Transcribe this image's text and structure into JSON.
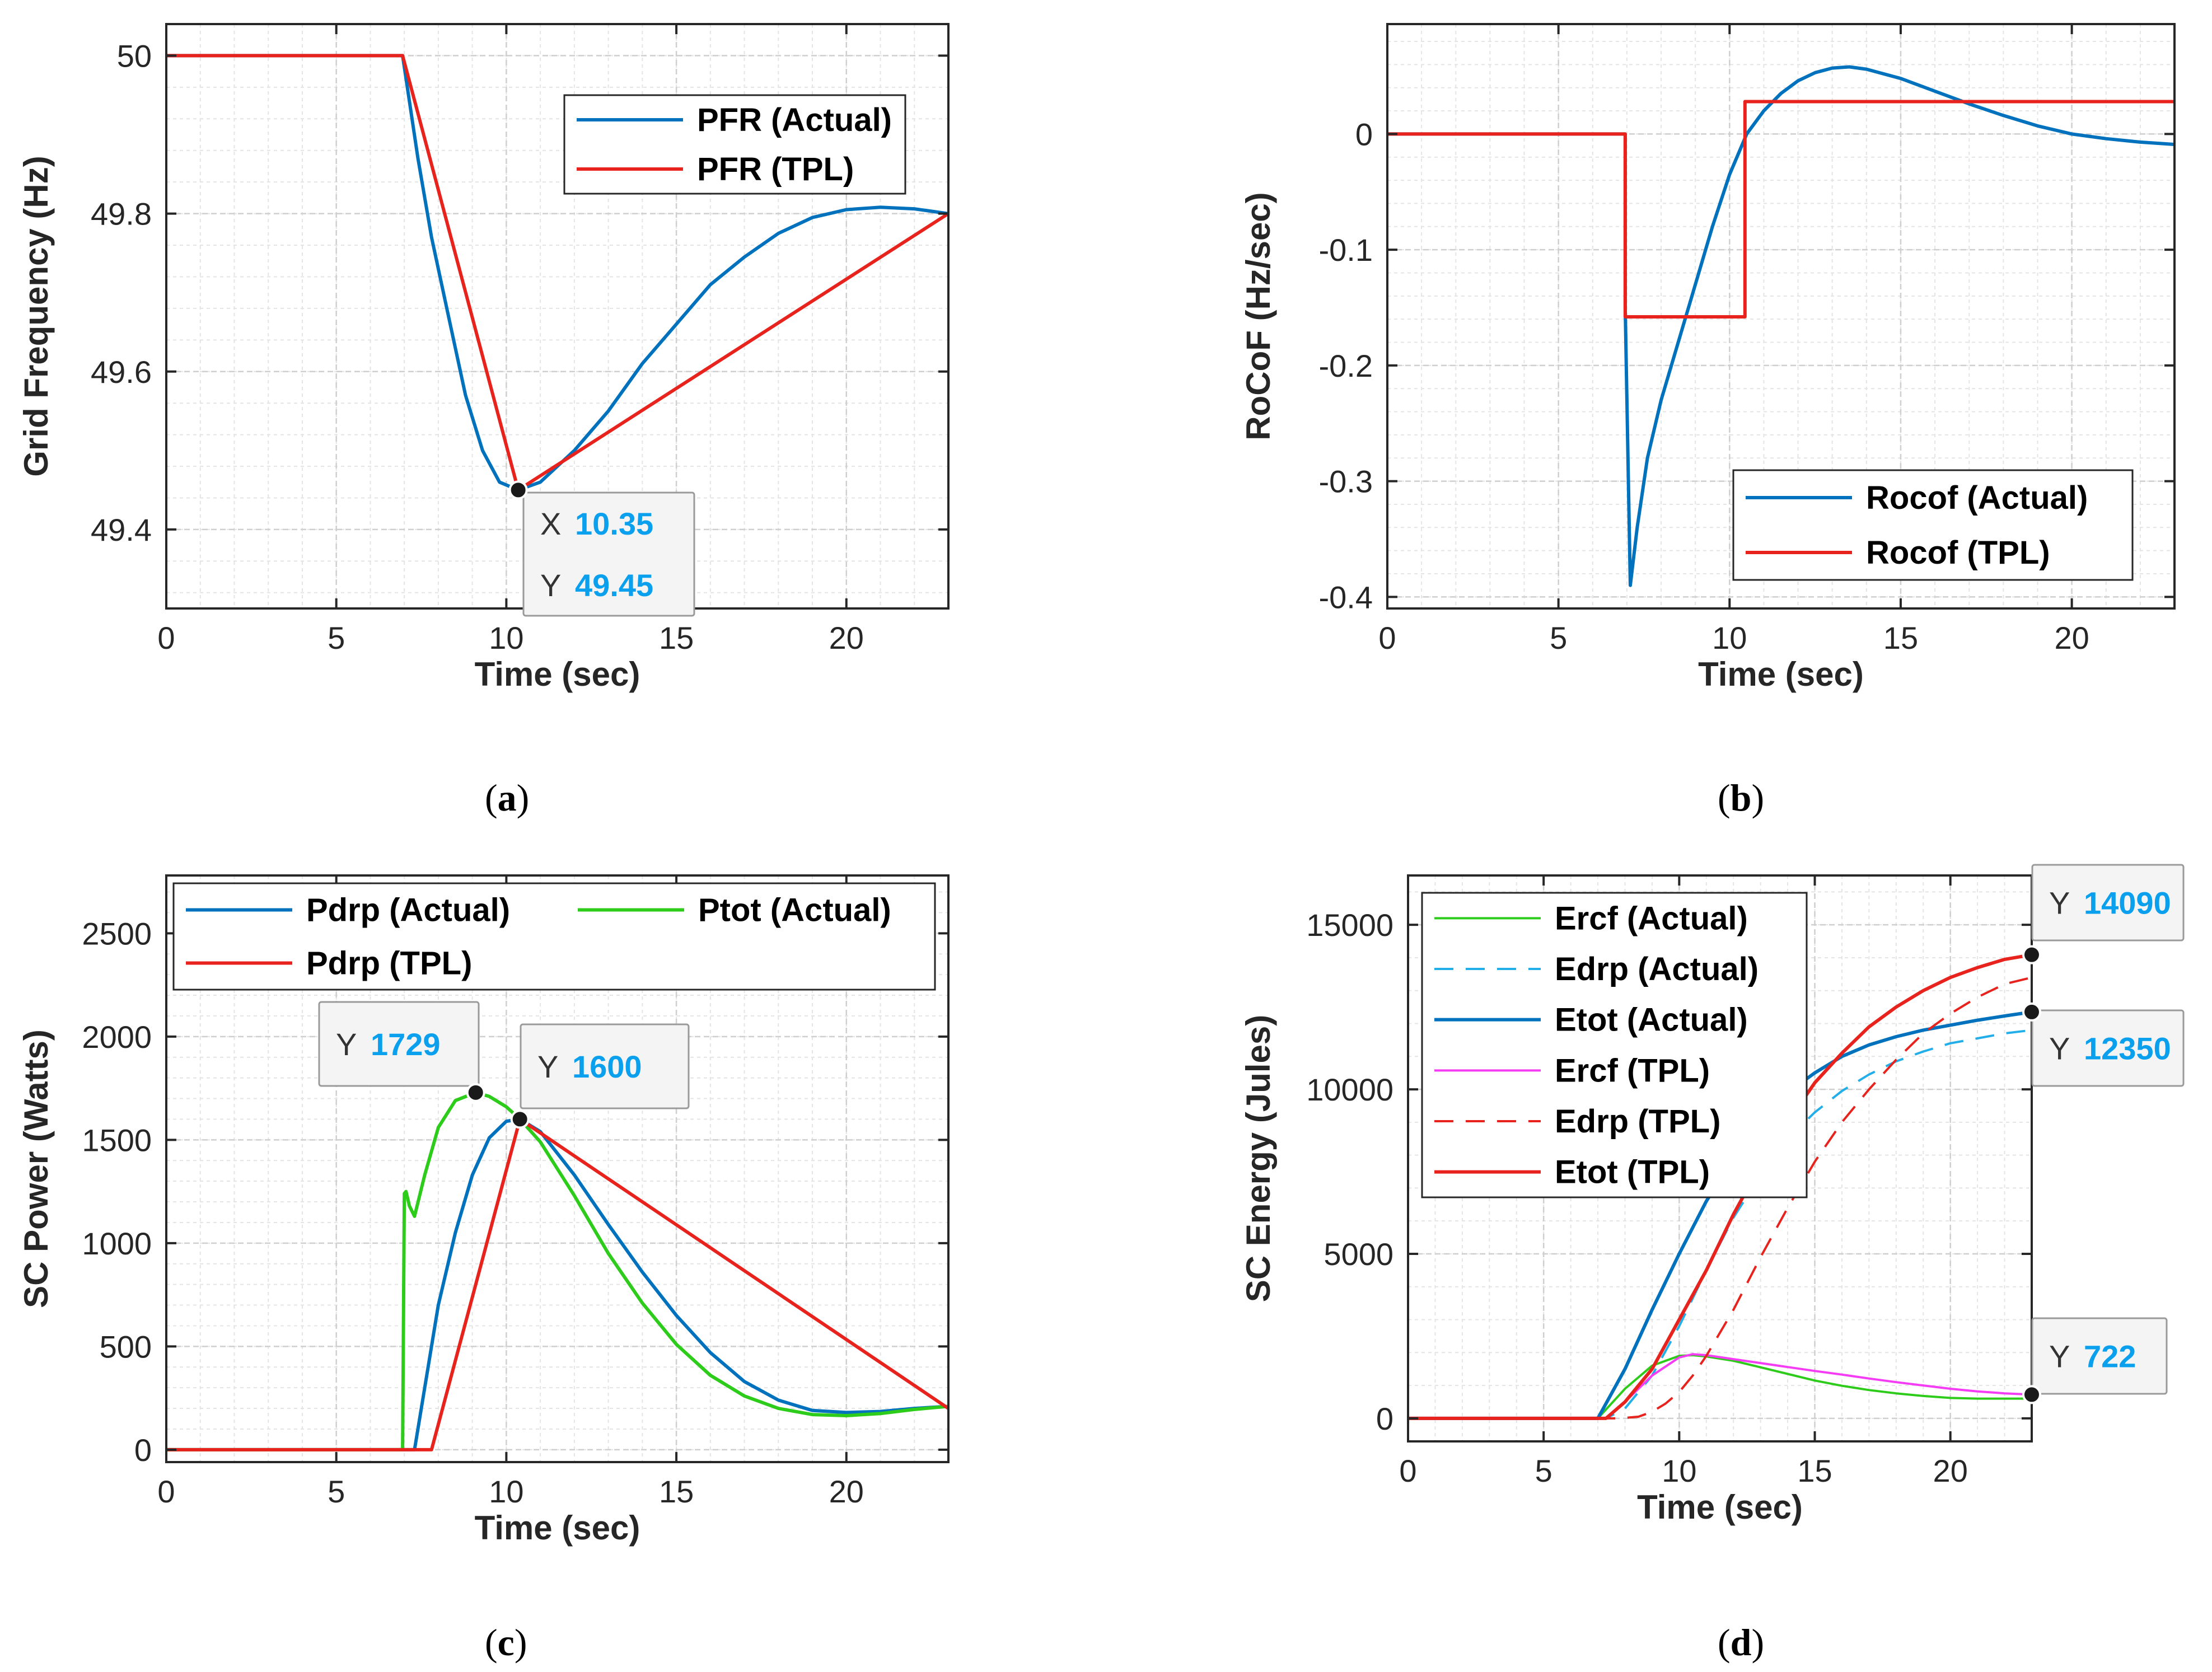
{
  "colors": {
    "actual": "#0072BD",
    "tpl": "#E8221C",
    "tot": "#2ECC1A",
    "magenta": "#F53CF5",
    "cyan": "#21AEE9",
    "datatip": "#0aa0ee"
  },
  "chart_data": [
    {
      "id": "a",
      "type": "line",
      "caption_paren_left": "(",
      "caption_letter": "a",
      "caption_paren_right": ")",
      "xlabel": "Time (sec)",
      "ylabel": "Grid Frequency (Hz)",
      "xlim": [
        0,
        23
      ],
      "ylim": [
        49.3,
        50.04
      ],
      "xticks": [
        0,
        5,
        10,
        15,
        20
      ],
      "xtick_labels": [
        "0",
        "5",
        "10",
        "15",
        "20"
      ],
      "yticks": [
        49.4,
        49.6,
        49.8,
        50
      ],
      "ytick_labels": [
        "49.4",
        "49.6",
        "49.8",
        "50"
      ],
      "legend": [
        "PFR (Actual)",
        "PFR (TPL)"
      ],
      "series": [
        {
          "name": "PFR (Actual)",
          "color": "actual",
          "x": [
            0,
            6.95,
            7.4,
            7.8,
            8.3,
            8.8,
            9.3,
            9.8,
            10.35,
            11,
            12,
            13,
            14,
            15,
            16,
            17,
            18,
            19,
            20,
            21,
            22,
            23
          ],
          "y": [
            50,
            50,
            49.87,
            49.77,
            49.67,
            49.57,
            49.5,
            49.46,
            49.45,
            49.46,
            49.5,
            49.55,
            49.61,
            49.66,
            49.71,
            49.745,
            49.775,
            49.795,
            49.805,
            49.808,
            49.806,
            49.8
          ]
        },
        {
          "name": "PFR (TPL)",
          "color": "tpl",
          "x": [
            0,
            6.95,
            10.35,
            23
          ],
          "y": [
            50,
            50,
            49.45,
            49.8
          ]
        }
      ],
      "datatips": [
        {
          "x": 10.35,
          "y": 49.45,
          "lines": [
            {
              "k": "X",
              "v": "10.35"
            },
            {
              "k": "Y",
              "v": "49.45"
            }
          ]
        }
      ]
    },
    {
      "id": "b",
      "type": "line",
      "caption_paren_left": "(",
      "caption_letter": "b",
      "caption_paren_right": ")",
      "xlabel": "Time (sec)",
      "ylabel": "RoCoF (Hz/sec)",
      "xlim": [
        0,
        23
      ],
      "ylim": [
        -0.41,
        0.095
      ],
      "xticks": [
        0,
        5,
        10,
        15,
        20
      ],
      "xtick_labels": [
        "0",
        "5",
        "10",
        "15",
        "20"
      ],
      "yticks": [
        -0.4,
        -0.3,
        -0.2,
        -0.1,
        0
      ],
      "ytick_labels": [
        "-0.4",
        "-0.3",
        "-0.2",
        "-0.1",
        "0"
      ],
      "legend": [
        "Rocof (Actual)",
        "Rocof (TPL)"
      ],
      "series": [
        {
          "name": "Rocof (Actual)",
          "color": "actual",
          "x": [
            0,
            6.95,
            6.95,
            7.1,
            7.3,
            7.6,
            8,
            8.5,
            9,
            9.5,
            10,
            10.5,
            11,
            11.5,
            12,
            12.5,
            13,
            13.5,
            14,
            15,
            16,
            17,
            18,
            19,
            20,
            21,
            22,
            23
          ],
          "y": [
            0,
            0,
            -0.15,
            -0.39,
            -0.34,
            -0.28,
            -0.23,
            -0.18,
            -0.13,
            -0.08,
            -0.035,
            0,
            0.02,
            0.035,
            0.046,
            0.053,
            0.057,
            0.058,
            0.056,
            0.048,
            0.037,
            0.026,
            0.016,
            0.007,
            0,
            -0.004,
            -0.007,
            -0.009
          ]
        },
        {
          "name": "Rocof (TPL)",
          "color": "tpl",
          "x": [
            0,
            6.95,
            6.95,
            10.45,
            10.45,
            23
          ],
          "y": [
            0,
            0,
            -0.158,
            -0.158,
            0.028,
            0.028
          ]
        }
      ],
      "datatips": []
    },
    {
      "id": "c",
      "type": "line",
      "caption_paren_left": "(",
      "caption_letter": "c",
      "caption_paren_right": ")",
      "xlabel": "Time (sec)",
      "ylabel": "SC Power (Watts)",
      "xlim": [
        0,
        23
      ],
      "ylim": [
        -60,
        2780
      ],
      "xticks": [
        0,
        5,
        10,
        15,
        20
      ],
      "xtick_labels": [
        "0",
        "5",
        "10",
        "15",
        "20"
      ],
      "yticks": [
        0,
        500,
        1000,
        1500,
        2000,
        2500
      ],
      "ytick_labels": [
        "0",
        "500",
        "1000",
        "1500",
        "2000",
        "2500"
      ],
      "legend": [
        "Pdrp (Actual)",
        "Ptot (Actual)",
        "Pdrp (TPL)"
      ],
      "series": [
        {
          "name": "Pdrp (Actual)",
          "color": "actual",
          "x": [
            0,
            7.3,
            7.6,
            8,
            8.5,
            9,
            9.5,
            10,
            10.4,
            11,
            12,
            13,
            14,
            15,
            16,
            17,
            18,
            19,
            20,
            21,
            22,
            23
          ],
          "y": [
            0,
            0,
            300,
            700,
            1050,
            1330,
            1510,
            1590,
            1600,
            1540,
            1330,
            1090,
            860,
            650,
            470,
            330,
            240,
            190,
            180,
            185,
            200,
            210
          ]
        },
        {
          "name": "Ptot (Actual)",
          "color": "tot",
          "x": [
            0,
            6.95,
            7.0,
            7.05,
            7.15,
            7.3,
            7.6,
            8,
            8.5,
            9.1,
            9.5,
            10,
            10.4,
            11,
            12,
            13,
            14,
            15,
            16,
            17,
            18,
            19,
            20,
            21,
            22,
            23
          ],
          "y": [
            0,
            0,
            1240,
            1250,
            1180,
            1130,
            1330,
            1560,
            1690,
            1729,
            1710,
            1660,
            1600,
            1490,
            1230,
            950,
            710,
            510,
            360,
            260,
            200,
            170,
            165,
            175,
            195,
            210
          ]
        },
        {
          "name": "Pdrp (TPL)",
          "color": "tpl",
          "x": [
            0,
            7.8,
            10.4,
            23
          ],
          "y": [
            0,
            0,
            1600,
            200
          ]
        }
      ],
      "datatips": [
        {
          "x": 9.1,
          "y": 1729,
          "lines": [
            {
              "k": "Y",
              "v": "1729"
            }
          ]
        },
        {
          "x": 10.4,
          "y": 1600,
          "lines": [
            {
              "k": "Y",
              "v": "1600"
            }
          ]
        }
      ]
    },
    {
      "id": "d",
      "type": "line",
      "caption_paren_left": "(",
      "caption_letter": "d",
      "caption_paren_right": ")",
      "xlabel": "Time (sec)",
      "ylabel": "SC Energy (Jules)",
      "xlim": [
        0,
        23
      ],
      "ylim": [
        -700,
        16500
      ],
      "xticks": [
        0,
        5,
        10,
        15,
        20
      ],
      "xtick_labels": [
        "0",
        "5",
        "10",
        "15",
        "20"
      ],
      "yticks": [
        0,
        5000,
        10000,
        15000
      ],
      "ytick_labels": [
        "0",
        "5000",
        "10000",
        "15000"
      ],
      "legend": [
        "Ercf (Actual)",
        "Edrp (Actual)",
        "Etot (Actual)",
        "Ercf (TPL)",
        "Edrp (TPL)",
        "Etot (TPL)"
      ],
      "series": [
        {
          "name": "Ercf (Actual)",
          "color": "tot",
          "style": "solid",
          "x": [
            0,
            7,
            8,
            9,
            10,
            10.5,
            11,
            12,
            13,
            14,
            15,
            16,
            17,
            18,
            19,
            20,
            21,
            22,
            23
          ],
          "y": [
            0,
            0,
            900,
            1600,
            1900,
            1920,
            1880,
            1750,
            1550,
            1350,
            1150,
            990,
            860,
            760,
            680,
            620,
            600,
            600,
            600
          ]
        },
        {
          "name": "Edrp (Actual)",
          "color": "cyan",
          "style": "dash",
          "x": [
            0,
            7.3,
            8,
            9,
            10,
            11,
            12,
            13,
            14,
            15,
            16,
            17,
            18,
            19,
            20,
            21,
            22,
            23
          ],
          "y": [
            0,
            0,
            300,
            1300,
            2800,
            4500,
            6100,
            7400,
            8500,
            9300,
            9950,
            10450,
            10850,
            11150,
            11400,
            11550,
            11700,
            11800
          ]
        },
        {
          "name": "Etot (Actual)",
          "color": "actual",
          "style": "solid",
          "x": [
            0,
            7,
            8,
            9,
            10,
            11,
            12,
            13,
            14,
            15,
            16,
            17,
            18,
            19,
            20,
            21,
            22,
            23
          ],
          "y": [
            0,
            0,
            1500,
            3300,
            5000,
            6600,
            7900,
            9000,
            9900,
            10500,
            11000,
            11350,
            11600,
            11800,
            11950,
            12100,
            12230,
            12350
          ]
        },
        {
          "name": "Ercf (TPL)",
          "color": "magenta",
          "style": "solid",
          "x": [
            0,
            7.3,
            8,
            9,
            10,
            10.5,
            11,
            12,
            13,
            14,
            15,
            16,
            17,
            18,
            19,
            20,
            21,
            22,
            23
          ],
          "y": [
            0,
            0,
            500,
            1300,
            1850,
            1950,
            1920,
            1800,
            1680,
            1560,
            1440,
            1330,
            1210,
            1100,
            1000,
            900,
            820,
            760,
            722
          ]
        },
        {
          "name": "Edrp (TPL)",
          "color": "tpl",
          "style": "dash",
          "x": [
            0,
            7.8,
            8.5,
            9,
            9.5,
            10,
            10.5,
            11,
            12,
            13,
            14,
            15,
            16,
            17,
            18,
            19,
            20,
            21,
            22,
            23
          ],
          "y": [
            0,
            0,
            50,
            200,
            450,
            800,
            1300,
            1900,
            3300,
            4900,
            6400,
            7800,
            9000,
            10000,
            10900,
            11700,
            12300,
            12800,
            13200,
            13400
          ]
        },
        {
          "name": "Etot (TPL)",
          "color": "tpl",
          "style": "solid",
          "x": [
            0,
            7.3,
            8,
            9,
            10,
            11,
            12,
            13,
            14,
            15,
            16,
            17,
            18,
            19,
            20,
            21,
            22,
            23
          ],
          "y": [
            0,
            0,
            500,
            1500,
            3000,
            4500,
            6200,
            7700,
            9000,
            10200,
            11100,
            11900,
            12500,
            13000,
            13400,
            13700,
            13950,
            14090
          ]
        }
      ],
      "datatips": [
        {
          "x": 23,
          "y": 14090,
          "lines": [
            {
              "k": "Y",
              "v": "14090"
            }
          ]
        },
        {
          "x": 23,
          "y": 12350,
          "lines": [
            {
              "k": "Y",
              "v": "12350"
            }
          ]
        },
        {
          "x": 23,
          "y": 722,
          "lines": [
            {
              "k": "Y",
              "v": "722"
            }
          ]
        }
      ]
    }
  ]
}
